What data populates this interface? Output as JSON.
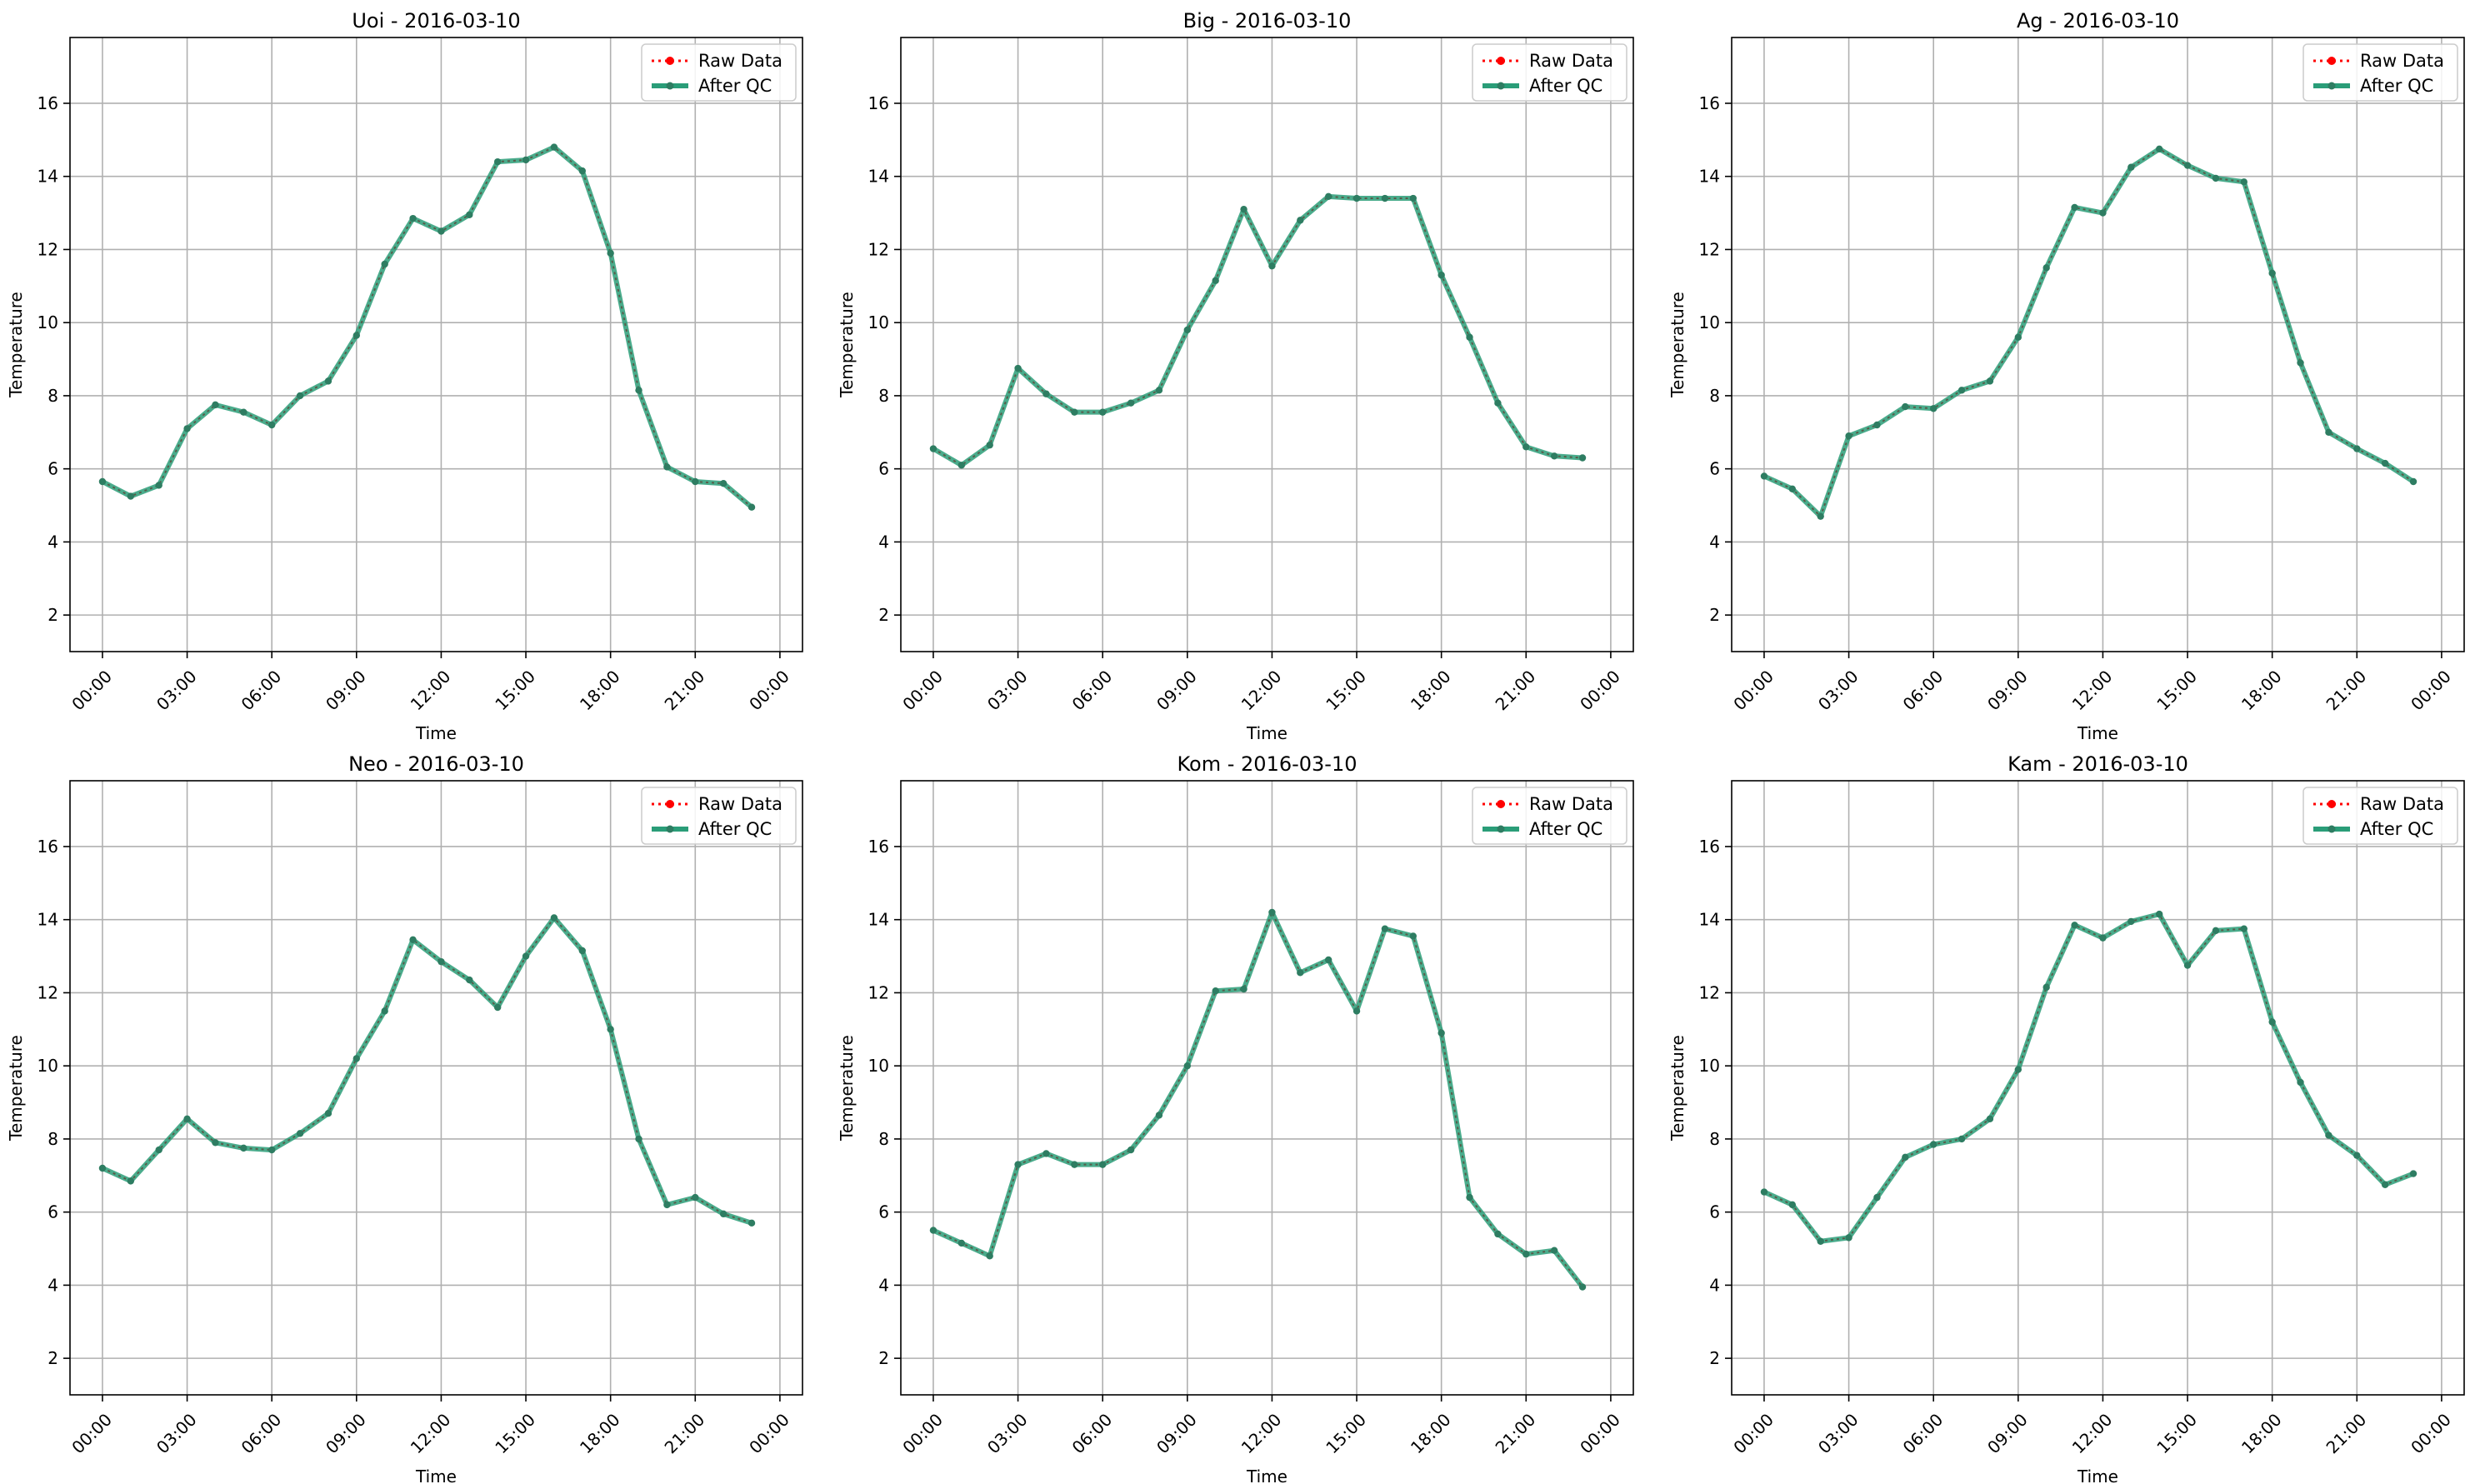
{
  "legend": {
    "raw_label": "Raw Data",
    "qc_label": "After QC",
    "raw_color": "#ff0000",
    "qc_color": "#2a9d78",
    "marker_color": "#2e7d62"
  },
  "chart_data": [
    {
      "type": "line",
      "title": "Uoi - 2016-03-10",
      "xlabel": "Time",
      "ylabel": "Temperature",
      "x_hours": [
        0,
        1,
        2,
        3,
        4,
        5,
        6,
        7,
        8,
        9,
        10,
        11,
        12,
        13,
        14,
        15,
        16,
        17,
        18,
        19,
        20,
        21,
        22,
        23
      ],
      "xtick_labels": [
        "00:00",
        "03:00",
        "06:00",
        "09:00",
        "12:00",
        "15:00",
        "18:00",
        "21:00",
        "00:00"
      ],
      "yticks": [
        2,
        4,
        6,
        8,
        10,
        12,
        14,
        16
      ],
      "ylim": [
        1,
        17.8
      ],
      "grid": true,
      "legend_position": "upper right",
      "series": [
        {
          "name": "Raw Data",
          "values": [
            5.65,
            5.25,
            5.55,
            7.1,
            7.75,
            7.55,
            7.2,
            8.0,
            8.4,
            9.65,
            11.6,
            12.85,
            12.5,
            12.95,
            14.4,
            14.45,
            14.8,
            14.15,
            11.9,
            8.15,
            6.05,
            5.65,
            5.6,
            4.95
          ]
        },
        {
          "name": "After QC",
          "values": [
            5.65,
            5.25,
            5.55,
            7.1,
            7.75,
            7.55,
            7.2,
            8.0,
            8.4,
            9.65,
            11.6,
            12.85,
            12.5,
            12.95,
            14.4,
            14.45,
            14.8,
            14.15,
            11.9,
            8.15,
            6.05,
            5.65,
            5.6,
            4.95
          ]
        }
      ]
    },
    {
      "type": "line",
      "title": "Big - 2016-03-10",
      "xlabel": "Time",
      "ylabel": "Temperature",
      "x_hours": [
        0,
        1,
        2,
        3,
        4,
        5,
        6,
        7,
        8,
        9,
        10,
        11,
        12,
        13,
        14,
        15,
        16,
        17,
        18,
        19,
        20,
        21,
        22,
        23
      ],
      "xtick_labels": [
        "00:00",
        "03:00",
        "06:00",
        "09:00",
        "12:00",
        "15:00",
        "18:00",
        "21:00",
        "00:00"
      ],
      "yticks": [
        2,
        4,
        6,
        8,
        10,
        12,
        14,
        16
      ],
      "ylim": [
        1,
        17.8
      ],
      "grid": true,
      "legend_position": "upper right",
      "series": [
        {
          "name": "Raw Data",
          "values": [
            6.55,
            6.1,
            6.65,
            8.75,
            8.05,
            7.55,
            7.55,
            7.8,
            8.15,
            9.8,
            11.15,
            13.1,
            11.55,
            12.8,
            13.45,
            13.4,
            13.4,
            13.4,
            11.3,
            9.6,
            7.8,
            6.6,
            6.35,
            6.3
          ]
        },
        {
          "name": "After QC",
          "values": [
            6.55,
            6.1,
            6.65,
            8.75,
            8.05,
            7.55,
            7.55,
            7.8,
            8.15,
            9.8,
            11.15,
            13.1,
            11.55,
            12.8,
            13.45,
            13.4,
            13.4,
            13.4,
            11.3,
            9.6,
            7.8,
            6.6,
            6.35,
            6.3
          ]
        }
      ]
    },
    {
      "type": "line",
      "title": "Ag - 2016-03-10",
      "xlabel": "Time",
      "ylabel": "Temperature",
      "x_hours": [
        0,
        1,
        2,
        3,
        4,
        5,
        6,
        7,
        8,
        9,
        10,
        11,
        12,
        13,
        14,
        15,
        16,
        17,
        18,
        19,
        20,
        21,
        22,
        23
      ],
      "xtick_labels": [
        "00:00",
        "03:00",
        "06:00",
        "09:00",
        "12:00",
        "15:00",
        "18:00",
        "21:00",
        "00:00"
      ],
      "yticks": [
        2,
        4,
        6,
        8,
        10,
        12,
        14,
        16
      ],
      "ylim": [
        1,
        17.8
      ],
      "grid": true,
      "legend_position": "upper right",
      "series": [
        {
          "name": "Raw Data",
          "values": [
            5.8,
            5.45,
            4.7,
            6.9,
            7.2,
            7.7,
            7.65,
            8.15,
            8.4,
            9.6,
            11.5,
            13.15,
            13.0,
            14.25,
            14.75,
            14.3,
            13.95,
            13.85,
            11.35,
            8.9,
            7.0,
            6.55,
            6.15,
            5.65
          ]
        },
        {
          "name": "After QC",
          "values": [
            5.8,
            5.45,
            4.7,
            6.9,
            7.2,
            7.7,
            7.65,
            8.15,
            8.4,
            9.6,
            11.5,
            13.15,
            13.0,
            14.25,
            14.75,
            14.3,
            13.95,
            13.85,
            11.35,
            8.9,
            7.0,
            6.55,
            6.15,
            5.65
          ]
        }
      ]
    },
    {
      "type": "line",
      "title": "Neo - 2016-03-10",
      "xlabel": "Time",
      "ylabel": "Temperature",
      "x_hours": [
        0,
        1,
        2,
        3,
        4,
        5,
        6,
        7,
        8,
        9,
        10,
        11,
        12,
        13,
        14,
        15,
        16,
        17,
        18,
        19,
        20,
        21,
        22,
        23
      ],
      "xtick_labels": [
        "00:00",
        "03:00",
        "06:00",
        "09:00",
        "12:00",
        "15:00",
        "18:00",
        "21:00",
        "00:00"
      ],
      "yticks": [
        2,
        4,
        6,
        8,
        10,
        12,
        14,
        16
      ],
      "ylim": [
        1,
        17.8
      ],
      "grid": true,
      "legend_position": "upper right",
      "series": [
        {
          "name": "Raw Data",
          "values": [
            7.2,
            6.85,
            7.7,
            8.55,
            7.9,
            7.75,
            7.7,
            8.15,
            8.7,
            10.2,
            11.5,
            13.45,
            12.85,
            12.35,
            11.6,
            13.0,
            14.05,
            13.15,
            11.0,
            8.0,
            6.2,
            6.4,
            5.95,
            5.7
          ]
        },
        {
          "name": "After QC",
          "values": [
            7.2,
            6.85,
            7.7,
            8.55,
            7.9,
            7.75,
            7.7,
            8.15,
            8.7,
            10.2,
            11.5,
            13.45,
            12.85,
            12.35,
            11.6,
            13.0,
            14.05,
            13.15,
            11.0,
            8.0,
            6.2,
            6.4,
            5.95,
            5.7
          ]
        }
      ]
    },
    {
      "type": "line",
      "title": "Kom - 2016-03-10",
      "xlabel": "Time",
      "ylabel": "Temperature",
      "x_hours": [
        0,
        1,
        2,
        3,
        4,
        5,
        6,
        7,
        8,
        9,
        10,
        11,
        12,
        13,
        14,
        15,
        16,
        17,
        18,
        19,
        20,
        21,
        22,
        23
      ],
      "xtick_labels": [
        "00:00",
        "03:00",
        "06:00",
        "09:00",
        "12:00",
        "15:00",
        "18:00",
        "21:00",
        "00:00"
      ],
      "yticks": [
        2,
        4,
        6,
        8,
        10,
        12,
        14,
        16
      ],
      "ylim": [
        1,
        17.8
      ],
      "grid": true,
      "legend_position": "upper right",
      "series": [
        {
          "name": "Raw Data",
          "values": [
            5.5,
            5.15,
            4.8,
            7.3,
            7.6,
            7.3,
            7.3,
            7.7,
            8.65,
            10.0,
            12.05,
            12.1,
            14.2,
            12.55,
            12.9,
            11.5,
            13.75,
            13.55,
            10.9,
            6.4,
            5.4,
            4.85,
            4.95,
            3.95
          ]
        },
        {
          "name": "After QC",
          "values": [
            5.5,
            5.15,
            4.8,
            7.3,
            7.6,
            7.3,
            7.3,
            7.7,
            8.65,
            10.0,
            12.05,
            12.1,
            14.2,
            12.55,
            12.9,
            11.5,
            13.75,
            13.55,
            10.9,
            6.4,
            5.4,
            4.85,
            4.95,
            3.95
          ]
        }
      ]
    },
    {
      "type": "line",
      "title": "Kam - 2016-03-10",
      "xlabel": "Time",
      "ylabel": "Temperature",
      "x_hours": [
        0,
        1,
        2,
        3,
        4,
        5,
        6,
        7,
        8,
        9,
        10,
        11,
        12,
        13,
        14,
        15,
        16,
        17,
        18,
        19,
        20,
        21,
        22,
        23
      ],
      "xtick_labels": [
        "00:00",
        "03:00",
        "06:00",
        "09:00",
        "12:00",
        "15:00",
        "18:00",
        "21:00",
        "00:00"
      ],
      "yticks": [
        2,
        4,
        6,
        8,
        10,
        12,
        14,
        16
      ],
      "ylim": [
        1,
        17.8
      ],
      "grid": true,
      "legend_position": "upper right",
      "series": [
        {
          "name": "Raw Data",
          "values": [
            6.55,
            6.2,
            5.2,
            5.3,
            6.4,
            7.5,
            7.85,
            8.0,
            8.55,
            9.9,
            12.15,
            13.85,
            13.5,
            13.95,
            14.15,
            12.75,
            13.7,
            13.75,
            11.2,
            9.55,
            8.1,
            7.55,
            6.75,
            7.05
          ]
        },
        {
          "name": "After QC",
          "values": [
            6.55,
            6.2,
            5.2,
            5.3,
            6.4,
            7.5,
            7.85,
            8.0,
            8.55,
            9.9,
            12.15,
            13.85,
            13.5,
            13.95,
            14.15,
            12.75,
            13.7,
            13.75,
            11.2,
            9.55,
            8.1,
            7.55,
            6.75,
            7.05
          ]
        }
      ]
    }
  ]
}
